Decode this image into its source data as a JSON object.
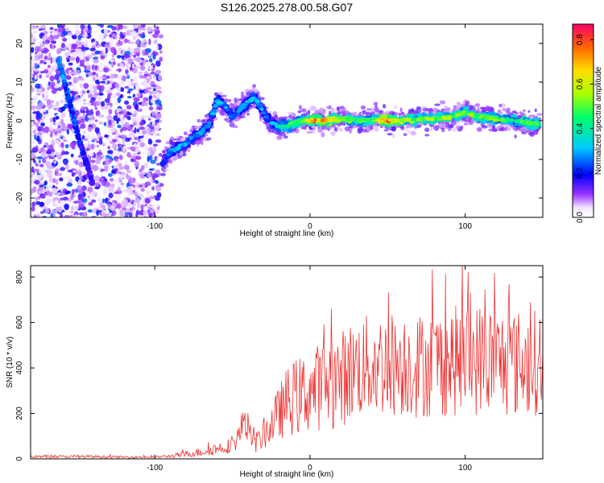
{
  "title": "S126.2025.278.00.58.G07",
  "colors": {
    "line": "#ee3333",
    "frame": "#000000",
    "background": "#ffffff"
  },
  "chart_data": [
    {
      "type": "heatmap",
      "xlabel": "Height of straight line (km)",
      "ylabel": "Frequency (Hz)",
      "xlim": [
        -180,
        150
      ],
      "ylim": [
        -25,
        25
      ],
      "x_ticks": [
        -100,
        0,
        100
      ],
      "x_tick_labels": [
        "-100",
        "0",
        "100"
      ],
      "y_ticks": [
        20,
        10,
        0,
        -10,
        -20
      ],
      "y_tick_labels": [
        "20",
        "10",
        "0",
        "-10",
        "-20"
      ],
      "colorbar": {
        "label": "Normalized spectral amplitude",
        "range": [
          0.0,
          0.87
        ],
        "ticks": [
          0.0,
          0.2,
          0.4,
          0.6,
          0.8
        ],
        "tick_labels": [
          "0.0",
          "0.2",
          "0.4",
          "0.6",
          "0.8"
        ],
        "colormap": "rainbow"
      },
      "ridge": {
        "name": "Dominant frequency trace",
        "x": [
          -95,
          -90,
          -85,
          -80,
          -75,
          -70,
          -65,
          -60,
          -55,
          -50,
          -45,
          -40,
          -35,
          -30,
          -25,
          -20,
          -15,
          -10,
          -5,
          0,
          10,
          20,
          30,
          40,
          50,
          60,
          70,
          80,
          90,
          100,
          110,
          120,
          130,
          140,
          148
        ],
        "y": [
          -11,
          -8,
          -7,
          -6,
          -4,
          -3,
          -1,
          5,
          4,
          1,
          3,
          5,
          6,
          2,
          -0.5,
          -1.5,
          -1.5,
          -0.5,
          0,
          0,
          0,
          0.5,
          0,
          0.3,
          0,
          0,
          0.5,
          0.5,
          1,
          2,
          1,
          0.5,
          0,
          -0.5,
          -1
        ],
        "amplitude": [
          0.25,
          0.3,
          0.35,
          0.3,
          0.3,
          0.35,
          0.3,
          0.35,
          0.3,
          0.3,
          0.3,
          0.35,
          0.35,
          0.3,
          0.3,
          0.4,
          0.45,
          0.5,
          0.55,
          0.75,
          0.8,
          0.6,
          0.5,
          0.55,
          0.85,
          0.6,
          0.55,
          0.6,
          0.6,
          0.55,
          0.55,
          0.55,
          0.5,
          0.55,
          0.5
        ]
      },
      "diagonal_trace": {
        "name": "Diagonal trace",
        "x": [
          -162,
          -155,
          -148,
          -140
        ],
        "y": [
          16,
          5,
          -6,
          -16
        ],
        "amplitude": [
          0.3,
          0.25,
          0.2,
          0.15
        ]
      },
      "noise_region_x": [
        -180,
        -96
      ]
    },
    {
      "type": "line",
      "xlabel": "Height of straight line (km)",
      "ylabel": "SNR (10 * v/v)",
      "xlim": [
        -180,
        150
      ],
      "ylim": [
        0,
        850
      ],
      "x_ticks": [
        -100,
        0,
        100
      ],
      "x_tick_labels": [
        "-100",
        "0",
        "100"
      ],
      "y_ticks": [
        0,
        200,
        400,
        600,
        800
      ],
      "y_tick_labels": [
        "0",
        "200",
        "400",
        "600",
        "800"
      ],
      "series": [
        {
          "name": "SNR",
          "x": [
            -180,
            -160,
            -140,
            -120,
            -100,
            -90,
            -80,
            -70,
            -60,
            -50,
            -45,
            -42,
            -40,
            -35,
            -30,
            -25,
            -20,
            -15,
            -10,
            -5,
            0,
            10,
            20,
            25,
            30,
            40,
            50,
            60,
            70,
            80,
            90,
            100,
            110,
            120,
            130,
            140,
            150
          ],
          "y_mean": [
            10,
            10,
            10,
            8,
            8,
            12,
            20,
            30,
            45,
            60,
            110,
            200,
            110,
            70,
            100,
            150,
            200,
            250,
            270,
            280,
            300,
            330,
            350,
            380,
            400,
            410,
            420,
            420,
            410,
            420,
            430,
            430,
            440,
            430,
            420,
            420,
            430
          ],
          "y_spread": [
            6,
            6,
            6,
            5,
            5,
            8,
            14,
            20,
            28,
            35,
            60,
            80,
            60,
            45,
            60,
            90,
            120,
            150,
            170,
            175,
            185,
            200,
            215,
            220,
            225,
            230,
            235,
            235,
            235,
            240,
            245,
            245,
            250,
            245,
            240,
            235,
            235
          ]
        }
      ]
    }
  ]
}
